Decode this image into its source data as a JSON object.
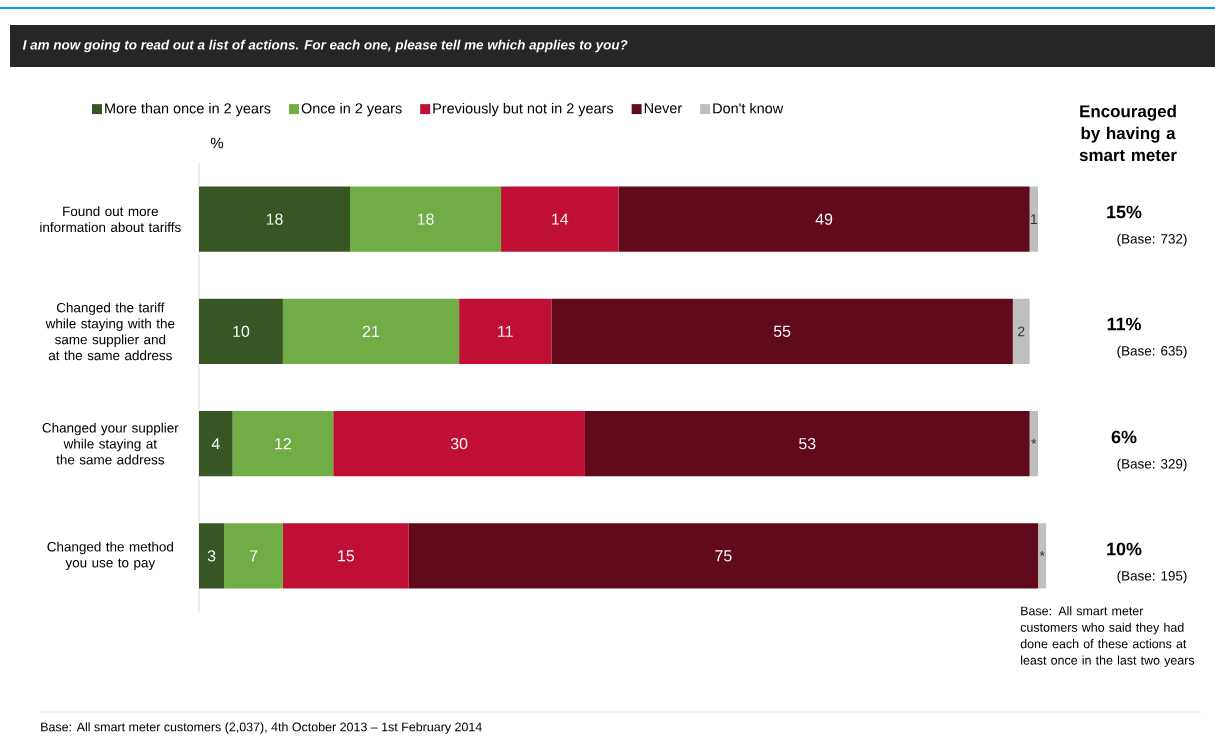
{
  "chart_data": {
    "type": "bar",
    "orientation": "horizontal",
    "stacked": true,
    "legend": "top",
    "title": "I am now going to read out a list of actions. For each one, please tell me which applies to you?",
    "categories": [
      "Found out more information about tariffs",
      "Changed the tariff while staying with the same supplier and at the same address",
      "Changed your supplier while staying at the same address",
      "Changed the method you use to pay"
    ],
    "series": [
      {
        "name": "More than once in 2 years",
        "color": "#375623",
        "values": [
          18,
          10,
          4,
          3
        ],
        "value_labels": [
          "18",
          "10",
          "4",
          "3"
        ]
      },
      {
        "name": "Once in 2 years",
        "color": "#70ad47",
        "values": [
          18,
          21,
          12,
          7
        ],
        "value_labels": [
          "18",
          "21",
          "12",
          "7"
        ]
      },
      {
        "name": "Previously but not in 2 years",
        "color": "#c00f35",
        "values": [
          14,
          11,
          30,
          15
        ],
        "value_labels": [
          "14",
          "11",
          "30",
          "15"
        ]
      },
      {
        "name": "Never",
        "color": "#600a1b",
        "values": [
          49,
          55,
          53,
          75
        ],
        "value_labels": [
          "49",
          "55",
          "53",
          "75"
        ]
      },
      {
        "name": "Don't know",
        "color": "#bfbfbf",
        "values": [
          1,
          2,
          1,
          1
        ],
        "value_labels": [
          "1",
          "2",
          "*",
          "*"
        ]
      }
    ],
    "annotations": [
      "%",
      "Encouraged by having a smart meter",
      "15%",
      "(Base: 732)",
      "11%",
      "(Base: 635)",
      "6%",
      "(Base: 329)",
      "10%",
      "(Base: 195)",
      "Base: All smart meter customers who said they had done each of these actions at least once in the last two years",
      "Base: All smart meter customers (2,037), 4th October 2013 – 1st February 2014"
    ]
  }
}
